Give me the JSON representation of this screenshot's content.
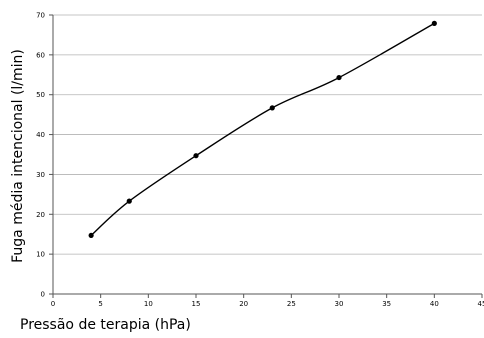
{
  "chart_data": {
    "type": "line",
    "title": "",
    "xlabel": "Pressão de terapia (hPa)",
    "ylabel": "Fuga média intencional (l/min)",
    "xlim": [
      0,
      45
    ],
    "ylim": [
      0,
      70
    ],
    "xticks": [
      0,
      5,
      10,
      15,
      20,
      25,
      30,
      35,
      40,
      45
    ],
    "yticks": [
      0,
      10,
      20,
      30,
      40,
      50,
      60,
      70
    ],
    "xtick_labels": [
      "0",
      "5",
      "10",
      "15",
      "20",
      "25",
      "30",
      "35",
      "40",
      "45"
    ],
    "ytick_labels": [
      "0",
      "10",
      "20",
      "30",
      "40",
      "50",
      "60",
      "70"
    ],
    "grid": "horizontal",
    "legend": "none",
    "series": [
      {
        "x": [
          4,
          8,
          15,
          23,
          30,
          40
        ],
        "y": [
          14.7,
          23.3,
          34.7,
          46.7,
          54.3,
          67.9
        ],
        "color": "#000000",
        "marker": "circle",
        "smooth": true
      }
    ]
  }
}
